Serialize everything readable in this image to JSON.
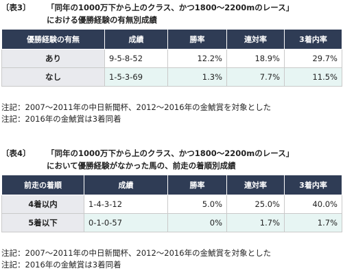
{
  "table3": {
    "label": "〔表3〕",
    "title_line1": "「同年の1000万下から上のクラス、かつ1800～2200mのレース」",
    "title_line2": "における優勝経験の有無別成績",
    "headers": [
      "優勝経験の有無",
      "成績",
      "勝率",
      "連対率",
      "3着内率"
    ],
    "rows": [
      {
        "label": "あり",
        "record": "9-5-8-52",
        "win": "12.2%",
        "quinella": "18.9%",
        "show": "29.7%"
      },
      {
        "label": "なし",
        "record": "1-5-3-69",
        "win": "1.3%",
        "quinella": "7.7%",
        "show": "11.5%"
      }
    ],
    "notes": [
      "注記：2007～2011年の中日新聞杯、2012～2016年の金鯱賞を対象とした",
      "注記：2016年の金鯱賞は3着同着"
    ]
  },
  "table4": {
    "label": "〔表4〕",
    "title_line1": "「同年の1000万下から上のクラス、かつ1800～2200mのレース」",
    "title_line2": "において優勝経験がなかった馬の、前走の着順別成績",
    "headers": [
      "前走の着順",
      "成績",
      "勝率",
      "連対率",
      "3着内率"
    ],
    "rows": [
      {
        "label": "4着以内",
        "record": "1-4-3-12",
        "win": "5.0%",
        "quinella": "25.0%",
        "show": "40.0%"
      },
      {
        "label": "5着以下",
        "record": "0-1-0-57",
        "win": "0%",
        "quinella": "1.7%",
        "show": "1.7%"
      }
    ],
    "notes": [
      "注記：2007～2011年の中日新聞杯、2012～2016年の金鯱賞を対象とした",
      "注記：2016年の金鯱賞は3着同着"
    ]
  }
}
